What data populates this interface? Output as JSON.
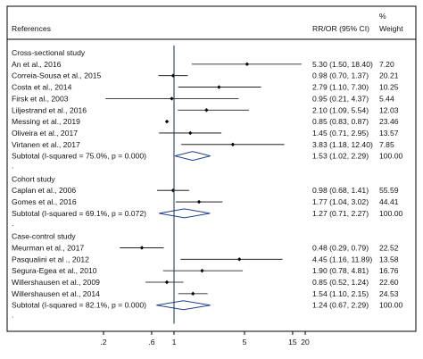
{
  "chart_data": {
    "type": "forest",
    "headers": {
      "study": "References",
      "effect": "RR/OR (95% CI)",
      "weight_symbol": "%",
      "weight": "Weight"
    },
    "x_scale": "log",
    "xlim": [
      0.1,
      20
    ],
    "x_ticks": [
      0.2,
      0.6,
      1,
      5,
      15,
      20
    ],
    "x_tick_labels": [
      ".2",
      ".6",
      "1",
      "5",
      "15",
      "20"
    ],
    "null_line": 1,
    "rows": [
      {
        "kind": "group",
        "label": "Cross-sectional study"
      },
      {
        "kind": "study",
        "label": "An et al., 2016",
        "est": 5.3,
        "lo": 1.5,
        "hi": 18.4,
        "ci_text": "5.30 (1.50, 18.40)",
        "weight": "7.20"
      },
      {
        "kind": "study",
        "label": "Correia-Sousa et al., 2015",
        "est": 0.98,
        "lo": 0.7,
        "hi": 1.37,
        "ci_text": "0.98 (0.70, 1.37)",
        "weight": "20.21"
      },
      {
        "kind": "study",
        "label": "Costa et al., 2014",
        "est": 2.79,
        "lo": 1.1,
        "hi": 7.3,
        "ci_text": "2.79 (1.10, 7.30)",
        "weight": "10.25"
      },
      {
        "kind": "study",
        "label": "Firsk et al., 2003",
        "est": 0.95,
        "lo": 0.21,
        "hi": 4.37,
        "ci_text": "0.95 (0.21, 4.37)",
        "weight": "5.44"
      },
      {
        "kind": "study",
        "label": "Liljestrand et al., 2016",
        "est": 2.1,
        "lo": 1.09,
        "hi": 5.54,
        "ci_text": "2.10 (1.09, 5.54)",
        "weight": "12.03"
      },
      {
        "kind": "study",
        "label": "Messing et al., 2019",
        "est": 0.85,
        "lo": 0.83,
        "hi": 0.87,
        "ci_text": "0.85 (0.83, 0.87)",
        "weight": "23.46"
      },
      {
        "kind": "study",
        "label": "Oliveira et al., 2017",
        "est": 1.45,
        "lo": 0.71,
        "hi": 2.95,
        "ci_text": "1.45 (0.71, 2.95)",
        "weight": "13.57"
      },
      {
        "kind": "study",
        "label": "Virtanen et al., 2017",
        "est": 3.83,
        "lo": 1.18,
        "hi": 12.4,
        "ci_text": "3.83 (1.18, 12.40)",
        "weight": "7.85"
      },
      {
        "kind": "subtotal",
        "label": "Subtotal  (I-squared = 75.0%, p = 0.000)",
        "est": 1.53,
        "lo": 1.02,
        "hi": 2.29,
        "ci_text": "1.53 (1.02, 2.29)",
        "weight": "100.00"
      },
      {
        "kind": "dot",
        "label": "."
      },
      {
        "kind": "group",
        "label": "Cohort study"
      },
      {
        "kind": "study",
        "label": "Caplan et al., 2006",
        "est": 0.98,
        "lo": 0.68,
        "hi": 1.41,
        "ci_text": "0.98 (0.68, 1.41)",
        "weight": "55.59"
      },
      {
        "kind": "study",
        "label": "Gomes et al., 2016",
        "est": 1.77,
        "lo": 1.04,
        "hi": 3.02,
        "ci_text": "1.77 (1.04, 3.02)",
        "weight": "44.41"
      },
      {
        "kind": "subtotal",
        "label": "Subtotal  (I-squared = 69.1%, p = 0.072)",
        "est": 1.27,
        "lo": 0.71,
        "hi": 2.27,
        "ci_text": "1.27 (0.71, 2.27)",
        "weight": "100.00"
      },
      {
        "kind": "dot",
        "label": "."
      },
      {
        "kind": "group",
        "label": "Case-control study"
      },
      {
        "kind": "study",
        "label": "Meurman et al., 2017",
        "est": 0.48,
        "lo": 0.29,
        "hi": 0.79,
        "ci_text": "0.48 (0.29, 0.79)",
        "weight": "22.52"
      },
      {
        "kind": "study",
        "label": "Pasqualini et al ., 2012",
        "est": 4.45,
        "lo": 1.16,
        "hi": 11.89,
        "ci_text": "4.45 (1.16, 11.89)",
        "weight": "13.58"
      },
      {
        "kind": "study",
        "label": "Segura-Egea et al., 2010",
        "est": 1.9,
        "lo": 0.78,
        "hi": 4.81,
        "ci_text": "1.90 (0.78, 4.81)",
        "weight": "16.76"
      },
      {
        "kind": "study",
        "label": "Willershausen et al., 2009",
        "est": 0.85,
        "lo": 0.52,
        "hi": 1.24,
        "ci_text": "0.85 (0.52, 1.24)",
        "weight": "22.60"
      },
      {
        "kind": "study",
        "label": "Willershausen et al., 2014",
        "est": 1.54,
        "lo": 1.1,
        "hi": 2.15,
        "ci_text": "1.54 (1.10, 2.15)",
        "weight": "24.53"
      },
      {
        "kind": "subtotal",
        "label": "Subtotal  (I-squared = 82.1%, p = 0.000)",
        "est": 1.24,
        "lo": 0.67,
        "hi": 2.29,
        "ci_text": "1.24 (0.67, 2.29)",
        "weight": "100.00"
      },
      {
        "kind": "dot",
        "label": "."
      }
    ],
    "grid": false,
    "colors": {
      "frame": "#000000",
      "marker": "#000000",
      "diamond": "#1f3f8f",
      "null_line": "#1a2a5a",
      "background": "#ffffff"
    }
  }
}
